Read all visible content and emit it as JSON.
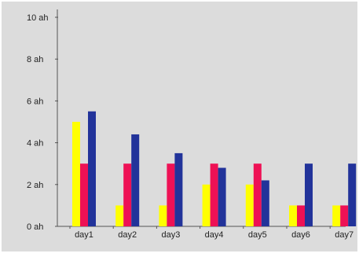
{
  "chart_data": {
    "type": "bar",
    "categories": [
      "day1",
      "day2",
      "day3",
      "day4",
      "day5",
      "day6",
      "day7"
    ],
    "series": [
      {
        "color": "#ffff00",
        "values": [
          5,
          1,
          1,
          2,
          2,
          1,
          1
        ]
      },
      {
        "color": "#ee1155",
        "values": [
          3,
          3,
          3,
          3,
          3,
          1,
          1
        ]
      },
      {
        "color": "#22339a",
        "values": [
          5.5,
          4.4,
          3.5,
          2.8,
          2.2,
          3,
          3
        ]
      }
    ],
    "y_ticks": [
      {
        "value": 0,
        "label": "0 ah"
      },
      {
        "value": 2,
        "label": "2 ah"
      },
      {
        "value": 4,
        "label": "4 ah"
      },
      {
        "value": 6,
        "label": "6 ah"
      },
      {
        "value": 8,
        "label": "8 ah"
      },
      {
        "value": 10,
        "label": "10 ah"
      }
    ],
    "ylim": [
      0,
      10
    ],
    "grid": false,
    "legend": "none",
    "title": "",
    "xlabel": "",
    "ylabel": ""
  },
  "style": {
    "plot_background": "#dcdcdc",
    "axis_color": "#555555"
  }
}
